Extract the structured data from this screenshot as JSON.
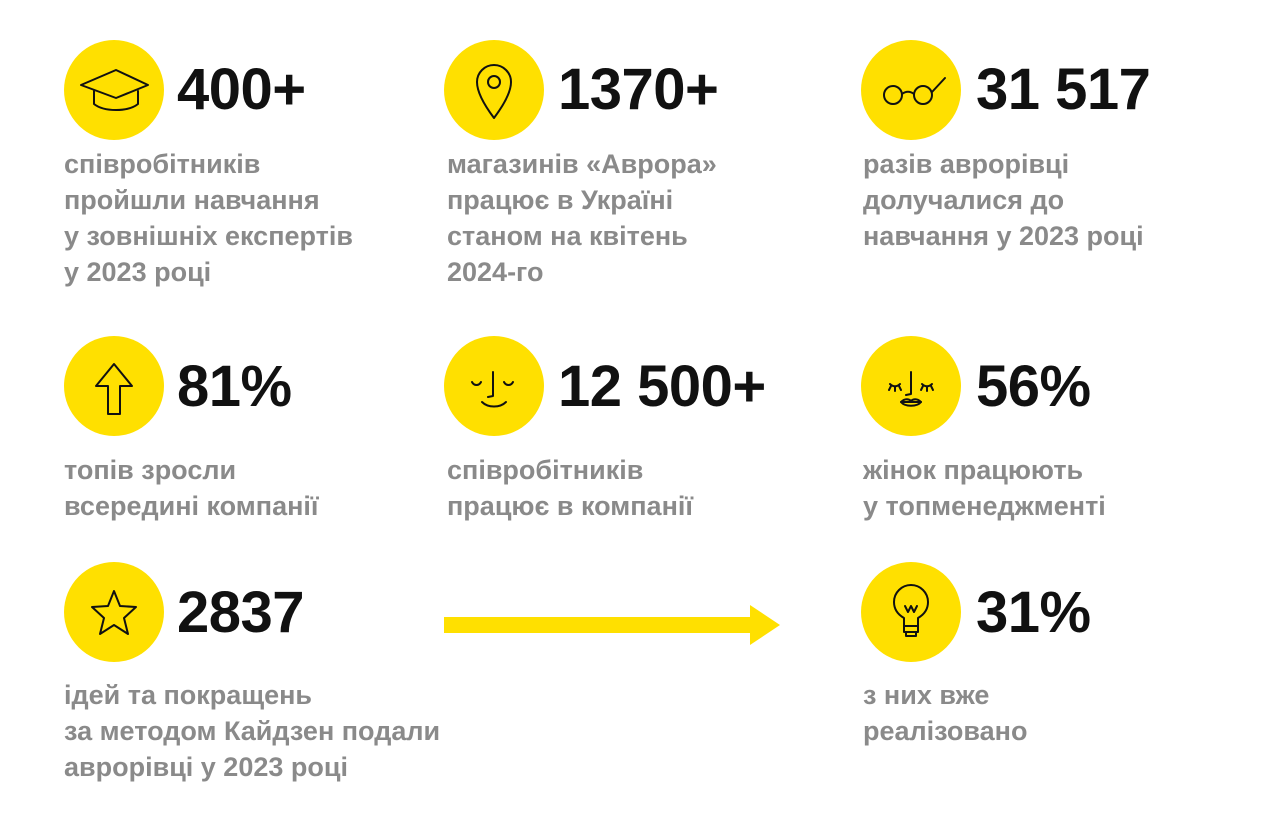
{
  "colors": {
    "accent": "#FFE000",
    "number": "#111111",
    "text": "#8a8a8a"
  },
  "stats": [
    {
      "icon": "graduation-cap-icon",
      "value": "400+",
      "lines": [
        "співробітників",
        "пройшли навчання",
        "у зовнішніх експертів",
        "у 2023 році"
      ]
    },
    {
      "icon": "location-pin-icon",
      "value": "1370+",
      "lines": [
        "магазинів «Аврора»",
        "працює в Україні",
        "станом на квітень",
        "2024-го"
      ]
    },
    {
      "icon": "glasses-icon",
      "value": "31 517",
      "lines": [
        "разів аврорівці",
        "долучалися до",
        "навчання у 2023 році"
      ]
    },
    {
      "icon": "arrow-up-icon",
      "value": "81%",
      "lines": [
        "топів зросли",
        "всередині компанії"
      ]
    },
    {
      "icon": "smiling-face-icon",
      "value": "12 500+",
      "lines": [
        "співробітників",
        "працює в компанії"
      ]
    },
    {
      "icon": "female-face-icon",
      "value": "56%",
      "lines": [
        "жінок працюють",
        "у топменеджменті"
      ]
    },
    {
      "icon": "star-icon",
      "value": "2837",
      "lines": [
        "ідей та покращень",
        "за методом Кайдзен подали",
        "аврорівці у 2023 році"
      ]
    },
    {
      "icon": "lightbulb-icon",
      "value": "31%",
      "lines": [
        "з них вже",
        "реалізовано"
      ]
    }
  ]
}
